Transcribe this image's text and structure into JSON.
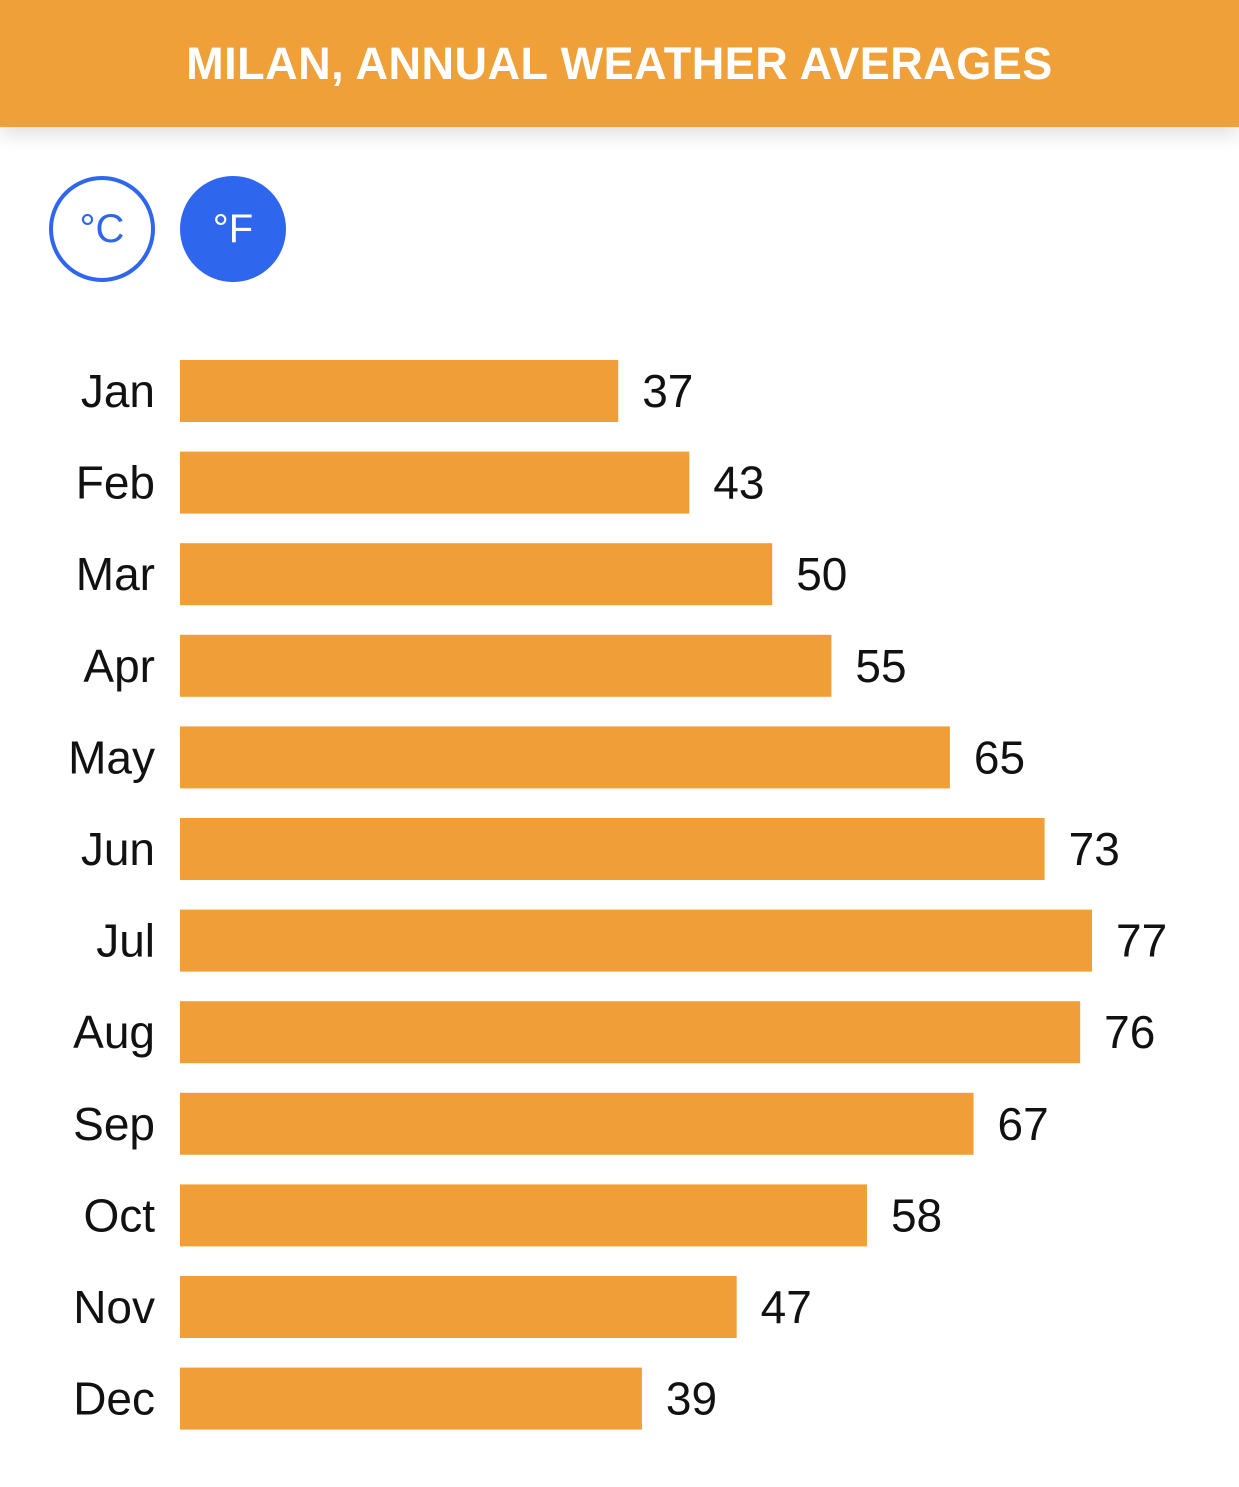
{
  "header": {
    "title": "MILAN, ANNUAL WEATHER AVERAGES"
  },
  "units": {
    "celsius_label": "°C",
    "fahrenheit_label": "°F",
    "selected": "°F"
  },
  "colors": {
    "header": "#f0a038",
    "bar": "#f09f38",
    "accent": "#2f66ee"
  },
  "chart_data": {
    "type": "bar",
    "orientation": "horizontal",
    "title": "MILAN, ANNUAL WEATHER AVERAGES",
    "categories": [
      "Jan",
      "Feb",
      "Mar",
      "Apr",
      "May",
      "Jun",
      "Jul",
      "Aug",
      "Sep",
      "Oct",
      "Nov",
      "Dec"
    ],
    "values": [
      37,
      43,
      50,
      55,
      65,
      73,
      77,
      76,
      67,
      58,
      47,
      39
    ],
    "xlim": [
      0,
      77
    ],
    "grid": false
  }
}
